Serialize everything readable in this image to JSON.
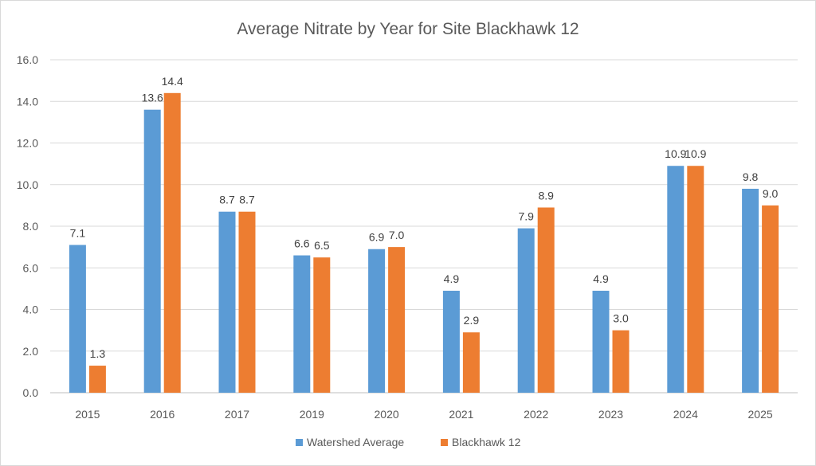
{
  "chart_data": {
    "type": "bar",
    "title": "Average Nitrate by Year for Site Blackhawk 12",
    "xlabel": "",
    "ylabel": "",
    "ylim": [
      0,
      16
    ],
    "yticks": [
      "0.0",
      "2.0",
      "4.0",
      "6.0",
      "8.0",
      "10.0",
      "12.0",
      "14.0",
      "16.0"
    ],
    "grid": true,
    "legend_position": "bottom",
    "categories": [
      "2015",
      "2016",
      "2017",
      "2019",
      "2020",
      "2021",
      "2022",
      "2023",
      "2024",
      "2025"
    ],
    "series": [
      {
        "name": "Watershed Average",
        "color": "#5B9BD5",
        "values": [
          7.1,
          13.6,
          8.7,
          6.6,
          6.9,
          4.9,
          7.9,
          4.9,
          10.9,
          9.8
        ]
      },
      {
        "name": "Blackhawk 12",
        "color": "#ED7D31",
        "values": [
          1.3,
          14.4,
          8.7,
          6.5,
          7.0,
          2.9,
          8.9,
          3.0,
          10.9,
          9.0
        ]
      }
    ]
  }
}
